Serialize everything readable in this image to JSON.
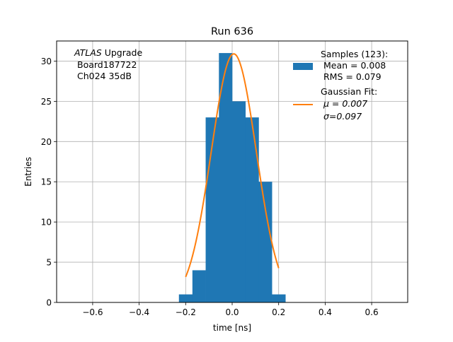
{
  "chart_data": {
    "type": "bar",
    "title": "Run 636",
    "xlabel": "time [ns]",
    "ylabel": "Entries",
    "xlim": [
      -0.755,
      0.755
    ],
    "ylim": [
      0,
      32.5
    ],
    "grid": true,
    "xticks": [
      -0.6,
      -0.4,
      -0.2,
      0.0,
      0.2,
      0.4,
      0.6
    ],
    "xtick_labels": [
      "−0.6",
      "−0.4",
      "−0.2",
      "0.0",
      "0.2",
      "0.4",
      "0.6"
    ],
    "yticks": [
      0,
      5,
      10,
      15,
      20,
      25,
      30
    ],
    "ytick_labels": [
      "0",
      "5",
      "10",
      "15",
      "20",
      "25",
      "30"
    ],
    "annotation": {
      "italic": "ATLAS",
      "rest": " Upgrade",
      "line2": "Board187722",
      "line3": "Ch024 35dB"
    },
    "histogram": {
      "name": "Samples (123):",
      "color": "#1f77b4",
      "bins": [
        {
          "x0": -0.229,
          "x1": -0.171,
          "count": 1
        },
        {
          "x0": -0.171,
          "x1": -0.114,
          "count": 4
        },
        {
          "x0": -0.114,
          "x1": -0.057,
          "count": 23
        },
        {
          "x0": -0.057,
          "x1": 0.0,
          "count": 31
        },
        {
          "x0": 0.0,
          "x1": 0.057,
          "count": 25
        },
        {
          "x0": 0.057,
          "x1": 0.114,
          "count": 23
        },
        {
          "x0": 0.114,
          "x1": 0.171,
          "count": 15
        },
        {
          "x0": 0.171,
          "x1": 0.229,
          "count": 1
        }
      ]
    },
    "fit": {
      "name": "Gaussian Fit:",
      "color": "#ff7f0e",
      "mu": 0.007,
      "sigma": 0.097,
      "amplitude": 30.9,
      "x_range": [
        -0.2,
        0.2
      ]
    },
    "legend": {
      "position": "top-right",
      "samples_title": "Samples (123):",
      "samples_mean": "Mean = 0.008",
      "samples_rms": "RMS = 0.079",
      "fit_title": "Gaussian Fit:",
      "fit_mu": "μ = 0.007",
      "fit_sigma": "σ=0.097"
    }
  }
}
